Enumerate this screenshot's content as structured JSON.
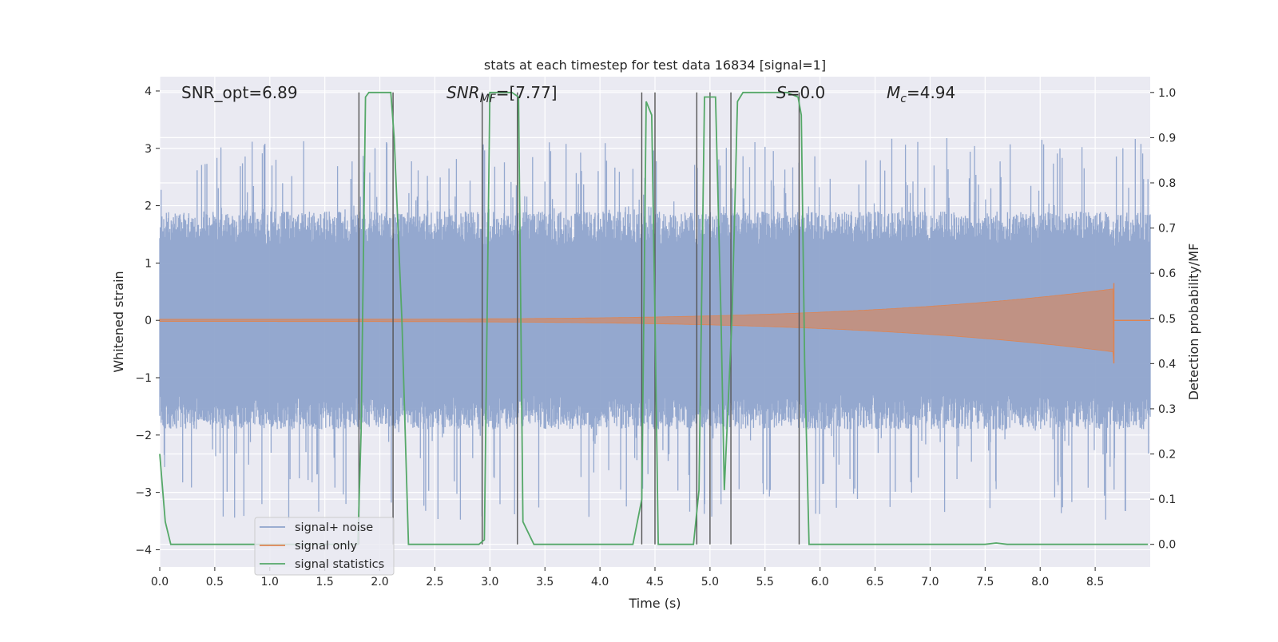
{
  "chart_data": {
    "type": "line",
    "title": "stats at each timestep for test data 16834 [signal=1]",
    "xlabel": "Time (s)",
    "ylabel_left": "Whitened strain",
    "ylabel_right": "Detection probability/MF",
    "xlim": [
      0.0,
      9.0
    ],
    "ylim_left": [
      -4.3,
      4.25
    ],
    "ylim_right": [
      -0.05,
      1.035
    ],
    "x_ticks": [
      "0.0",
      "0.5",
      "1.0",
      "1.5",
      "2.0",
      "2.5",
      "3.0",
      "3.5",
      "4.0",
      "4.5",
      "5.0",
      "5.5",
      "6.0",
      "6.5",
      "7.0",
      "7.5",
      "8.0",
      "8.5"
    ],
    "y_ticks_left": [
      "4",
      "3",
      "2",
      "1",
      "0",
      "−1",
      "−2",
      "−3",
      "−4"
    ],
    "y_ticks_right": [
      "1.0",
      "0.9",
      "0.8",
      "0.7",
      "0.6",
      "0.5",
      "0.4",
      "0.3",
      "0.2",
      "0.1",
      "0.0"
    ],
    "grid": true,
    "legend_position": "lower-left",
    "annotations": {
      "snr_opt": "SNR_opt=6.89",
      "snr_mf_base": "SNR",
      "snr_mf_sub": "MF",
      "snr_mf_value": "=[7.77]",
      "s_var": "S",
      "s_value": "=0.0",
      "mc_base": "M",
      "mc_sub": "c",
      "mc_value": "=4.94"
    },
    "series": [
      {
        "name": "signal+ noise",
        "color": "#8fa4cc",
        "kind": "noise",
        "noise_range": [
          -1.6,
          1.6
        ],
        "spike_range": [
          -3.5,
          3.2
        ]
      },
      {
        "name": "signal only",
        "color": "#dd8452",
        "kind": "chirp",
        "amplitude_start": 0.02,
        "amplitude_end": 0.55,
        "merger_time": 8.67
      },
      {
        "name": "signal statistics",
        "color": "#55a868",
        "kind": "probability",
        "axis": "right",
        "x": [
          0.0,
          0.05,
          0.1,
          0.2,
          0.5,
          1.0,
          1.5,
          1.8,
          1.83,
          1.87,
          1.9,
          2.0,
          2.1,
          2.13,
          2.2,
          2.26,
          2.35,
          2.5,
          2.9,
          2.95,
          3.0,
          3.05,
          3.2,
          3.26,
          3.3,
          3.4,
          3.5,
          4.0,
          4.3,
          4.38,
          4.42,
          4.47,
          4.5,
          4.53,
          4.6,
          4.7,
          4.85,
          4.9,
          4.95,
          5.0,
          5.05,
          5.1,
          5.13,
          5.2,
          5.25,
          5.3,
          5.4,
          5.5,
          5.7,
          5.8,
          5.83,
          5.86,
          5.9,
          6.0,
          6.5,
          7.0,
          7.5,
          7.6,
          7.7,
          8.0,
          8.5,
          8.98
        ],
        "y": [
          0.2,
          0.05,
          0.0,
          0.0,
          0.0,
          0.0,
          0.0,
          0.0,
          0.25,
          0.99,
          1.0,
          1.0,
          1.0,
          0.9,
          0.5,
          0.0,
          0.0,
          0.0,
          0.0,
          0.01,
          1.0,
          1.0,
          1.0,
          0.99,
          0.05,
          0.0,
          0.0,
          0.0,
          0.0,
          0.1,
          0.98,
          0.95,
          0.5,
          0.0,
          0.0,
          0.0,
          0.0,
          0.12,
          0.99,
          0.99,
          0.99,
          0.5,
          0.12,
          0.5,
          0.98,
          1.0,
          1.0,
          1.0,
          1.0,
          0.99,
          0.95,
          0.4,
          0.0,
          0.0,
          0.0,
          0.0,
          0.0,
          0.003,
          0.0,
          0.0,
          0.0,
          0.0
        ]
      }
    ],
    "vertical_lines_x": [
      1.81,
      2.12,
      2.93,
      3.25,
      4.38,
      4.5,
      4.88,
      5.0,
      5.19,
      5.81
    ]
  }
}
